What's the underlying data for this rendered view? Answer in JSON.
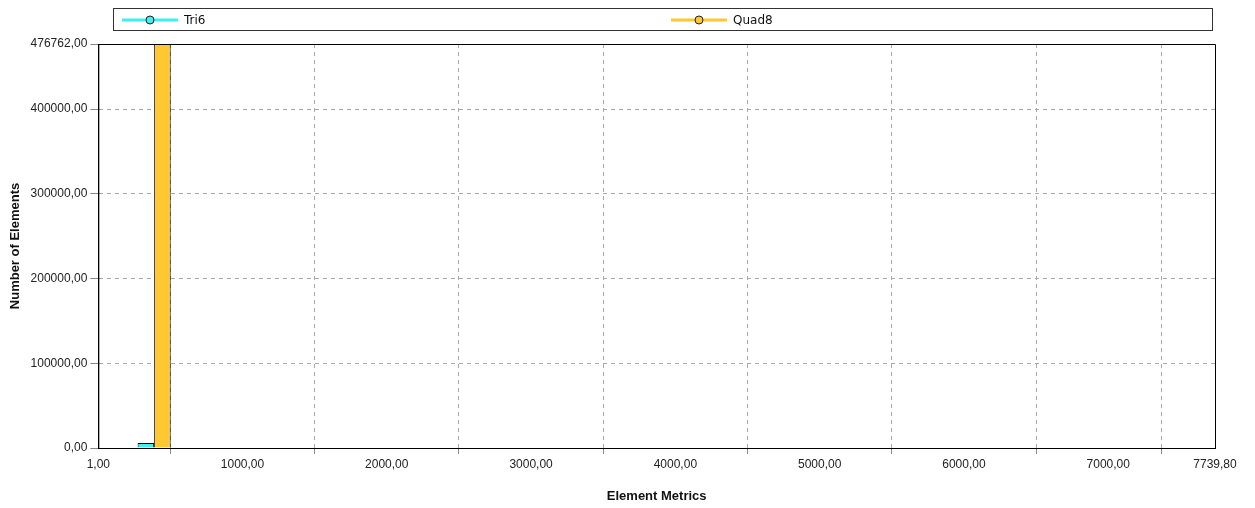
{
  "chart_data": {
    "type": "histogram",
    "xlabel": "Element Metrics",
    "ylabel": "Number of Elements",
    "bins": [
      1,
      774.88,
      1548.76,
      2322.64,
      3096.52,
      3870.4,
      4644.28,
      5418.16,
      6192.04,
      6965.92,
      7739.8
    ],
    "series": [
      {
        "name": "Tri6",
        "color": "#40f0f0",
        "values": [
          6000,
          0,
          0,
          0,
          0,
          0,
          0,
          0,
          0,
          0
        ]
      },
      {
        "name": "Quad8",
        "color": "#ffc832",
        "values": [
          476762,
          0,
          0,
          0,
          0,
          0,
          0,
          0,
          0,
          0
        ]
      }
    ],
    "xlim": [
      1,
      7739.8
    ],
    "xticks": [
      {
        "value": 1,
        "label": "1,00"
      },
      {
        "value": 1000,
        "label": "1000,00"
      },
      {
        "value": 2000,
        "label": "2000,00"
      },
      {
        "value": 3000,
        "label": "3000,00"
      },
      {
        "value": 4000,
        "label": "4000,00"
      },
      {
        "value": 5000,
        "label": "5000,00"
      },
      {
        "value": 6000,
        "label": "6000,00"
      },
      {
        "value": 7000,
        "label": "7000,00"
      },
      {
        "value": 7739.8,
        "label": "7739,80"
      }
    ],
    "ylim": [
      0,
      476762
    ],
    "yticks": [
      {
        "value": 0,
        "label": "0,00"
      },
      {
        "value": 100000,
        "label": "100000,00"
      },
      {
        "value": 200000,
        "label": "200000,00"
      },
      {
        "value": 300000,
        "label": "300000,00"
      },
      {
        "value": 400000,
        "label": "400000,00"
      },
      {
        "value": 476762,
        "label": "476762,00"
      }
    ],
    "grid": true,
    "legend": "top"
  }
}
